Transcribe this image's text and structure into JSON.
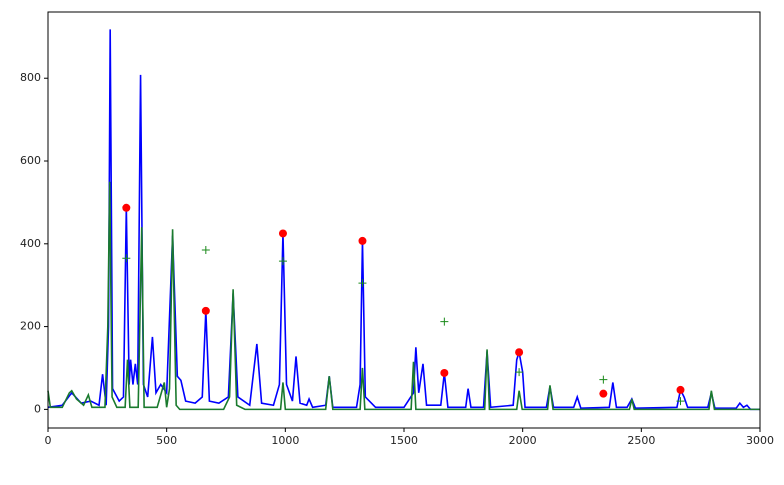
{
  "chart_data": {
    "type": "line",
    "xlim": [
      0,
      3000
    ],
    "ylim": [
      -45,
      960
    ],
    "xticks": [
      0,
      500,
      1000,
      1500,
      2000,
      2500,
      3000
    ],
    "yticks": [
      0,
      200,
      400,
      600,
      800
    ],
    "series": [
      {
        "color": "#0000ff",
        "marker": "none",
        "x": [
          0,
          60,
          100,
          140,
          180,
          215,
          230,
          245,
          255,
          262,
          272,
          300,
          318,
          330,
          342,
          348,
          358,
          368,
          378,
          390,
          402,
          420,
          440,
          455,
          475,
          500,
          525,
          545,
          560,
          580,
          620,
          650,
          665,
          680,
          720,
          760,
          780,
          800,
          850,
          880,
          900,
          950,
          975,
          990,
          1005,
          1030,
          1045,
          1062,
          1090,
          1100,
          1115,
          1170,
          1185,
          1200,
          1300,
          1315,
          1325,
          1337,
          1380,
          1500,
          1540,
          1550,
          1562,
          1580,
          1595,
          1655,
          1670,
          1685,
          1760,
          1770,
          1782,
          1835,
          1850,
          1865,
          1960,
          1975,
          1985,
          2000,
          2010,
          2100,
          2115,
          2130,
          2215,
          2230,
          2245,
          2365,
          2380,
          2395,
          2440,
          2460,
          2475,
          2650,
          2665,
          2680,
          2695,
          2780,
          2795,
          2810,
          2900,
          2915,
          2930,
          2945,
          2960,
          3000
        ],
        "values": [
          5,
          10,
          40,
          15,
          20,
          10,
          85,
          10,
          200,
          918,
          50,
          20,
          30,
          487,
          60,
          120,
          60,
          110,
          60,
          808,
          60,
          30,
          175,
          40,
          60,
          40,
          420,
          80,
          70,
          20,
          15,
          30,
          238,
          20,
          15,
          30,
          280,
          30,
          10,
          158,
          15,
          10,
          60,
          425,
          60,
          20,
          128,
          15,
          10,
          25,
          5,
          10,
          80,
          5,
          5,
          60,
          407,
          30,
          5,
          5,
          40,
          150,
          40,
          110,
          10,
          10,
          88,
          5,
          5,
          50,
          5,
          5,
          140,
          5,
          10,
          120,
          138,
          90,
          5,
          5,
          55,
          5,
          5,
          30,
          3,
          5,
          65,
          5,
          5,
          25,
          3,
          5,
          47,
          30,
          5,
          5,
          40,
          3,
          3,
          15,
          5,
          10,
          0,
          0
        ]
      },
      {
        "color": "#1a7a2e",
        "marker": "none",
        "x": [
          0,
          10,
          60,
          90,
          100,
          120,
          150,
          170,
          185,
          240,
          252,
          260,
          270,
          290,
          325,
          335,
          345,
          380,
          395,
          405,
          460,
          490,
          500,
          512,
          525,
          540,
          555,
          740,
          765,
          780,
          795,
          830,
          980,
          990,
          1000,
          1170,
          1185,
          1200,
          1315,
          1325,
          1335,
          1530,
          1540,
          1550,
          1840,
          1850,
          1860,
          1975,
          1985,
          1998,
          2105,
          2115,
          2128,
          2450,
          2460,
          2470,
          2785,
          2795,
          2808,
          3000
        ],
        "values": [
          45,
          5,
          5,
          40,
          45,
          25,
          10,
          35,
          5,
          5,
          200,
          550,
          30,
          5,
          5,
          120,
          5,
          5,
          440,
          5,
          5,
          65,
          5,
          50,
          435,
          10,
          0,
          0,
          30,
          290,
          10,
          0,
          0,
          65,
          0,
          0,
          80,
          0,
          0,
          100,
          0,
          0,
          115,
          0,
          0,
          145,
          0,
          0,
          45,
          0,
          0,
          58,
          0,
          0,
          25,
          0,
          0,
          45,
          0,
          0
        ]
      },
      {
        "color": "#ff0000",
        "marker": "o",
        "x": [
          330,
          665,
          990,
          1325,
          1670,
          1985,
          2340,
          2665
        ],
        "values": [
          487,
          238,
          425,
          407,
          88,
          138,
          38,
          47
        ]
      },
      {
        "color": "#1a8a1a",
        "marker": "+",
        "x": [
          330,
          665,
          990,
          1325,
          1670,
          1985,
          2340,
          2665
        ],
        "values": [
          365,
          385,
          358,
          305,
          212,
          90,
          72,
          20
        ]
      }
    ]
  }
}
